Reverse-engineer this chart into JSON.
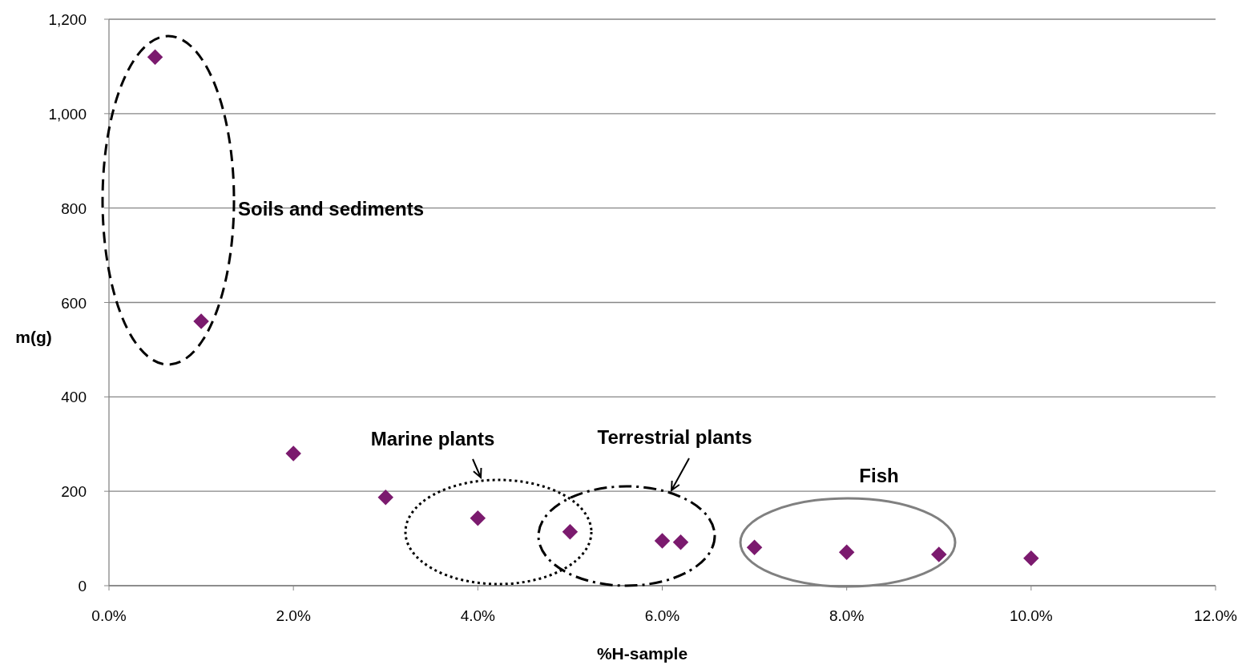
{
  "chart_data": {
    "type": "scatter",
    "xlabel": "%H-sample",
    "ylabel": "m(g)",
    "x": [
      0.5,
      1,
      2,
      3,
      4,
      5,
      6,
      6.2,
      7,
      8,
      9,
      10
    ],
    "series": [
      {
        "color": "#7b1a6e",
        "values": [
          1120,
          560,
          280,
          187,
          143,
          114,
          95,
          92,
          81,
          71,
          66,
          58
        ]
      }
    ],
    "xlim": [
      0,
      12
    ],
    "ylim": [
      0,
      1200
    ],
    "xticks": [
      {
        "value": 0,
        "label": "0.0%"
      },
      {
        "value": 2,
        "label": "2.0%"
      },
      {
        "value": 4,
        "label": "4.0%"
      },
      {
        "value": 6,
        "label": "6.0%"
      },
      {
        "value": 8,
        "label": "8.0%"
      },
      {
        "value": 10,
        "label": "10.0%"
      },
      {
        "value": 12,
        "label": "12.0%"
      }
    ],
    "yticks": [
      0,
      200,
      400,
      600,
      800,
      {
        "value": 1000,
        "label": "1,000"
      },
      {
        "value": 1200,
        "label": "1,200"
      }
    ],
    "grid": "y",
    "marker": "diamond",
    "annotations": [
      "Soils and sediments",
      "Marine plants",
      "Terrestrial plants",
      "Fish"
    ]
  }
}
